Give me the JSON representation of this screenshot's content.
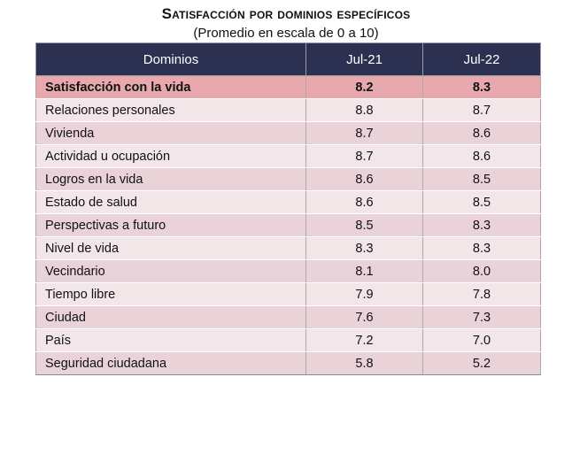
{
  "title": "Satisfacción por dominios específicos",
  "subtitle": "(Promedio en escala de 0 a 10)",
  "chart_data": {
    "type": "table",
    "columns": [
      "Dominios",
      "Jul-21",
      "Jul-22"
    ],
    "rows": [
      {
        "domain": "Satisfacción con la vida",
        "jul21": "8.2",
        "jul22": "8.3"
      },
      {
        "domain": "Relaciones personales",
        "jul21": "8.8",
        "jul22": "8.7"
      },
      {
        "domain": "Vivienda",
        "jul21": "8.7",
        "jul22": "8.6"
      },
      {
        "domain": "Actividad u ocupación",
        "jul21": "8.7",
        "jul22": "8.6"
      },
      {
        "domain": "Logros en la vida",
        "jul21": "8.6",
        "jul22": "8.5"
      },
      {
        "domain": "Estado de salud",
        "jul21": "8.6",
        "jul22": "8.5"
      },
      {
        "domain": "Perspectivas a futuro",
        "jul21": "8.5",
        "jul22": "8.3"
      },
      {
        "domain": "Nivel de vida",
        "jul21": "8.3",
        "jul22": "8.3"
      },
      {
        "domain": "Vecindario",
        "jul21": "8.1",
        "jul22": "8.0"
      },
      {
        "domain": "Tiempo libre",
        "jul21": "7.9",
        "jul22": "7.8"
      },
      {
        "domain": "Ciudad",
        "jul21": "7.6",
        "jul22": "7.3"
      },
      {
        "domain": "País",
        "jul21": "7.2",
        "jul22": "7.0"
      },
      {
        "domain": "Seguridad ciudadana",
        "jul21": "5.8",
        "jul22": "5.2"
      }
    ]
  }
}
